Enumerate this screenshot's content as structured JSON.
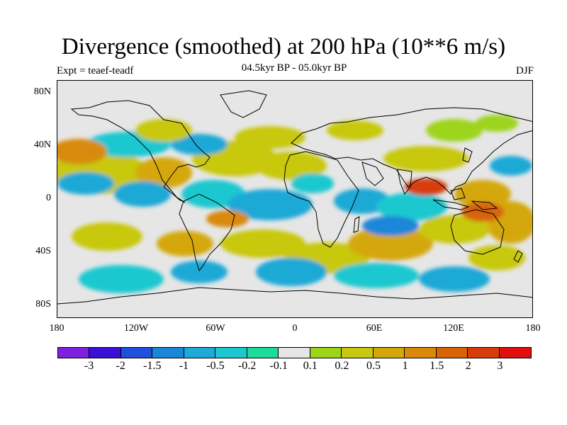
{
  "header": {
    "title": "Divergence (smoothed) at 200 hPa (10**6 m/s)",
    "experiment": "Expt = teaef-teadf",
    "period": "04.5kyr BP - 05.0kyr BP",
    "season": "DJF"
  },
  "axes": {
    "y_labels": [
      "80N",
      "40N",
      "0",
      "40S",
      "80S"
    ],
    "x_labels": [
      "180",
      "120W",
      "60W",
      "0",
      "60E",
      "120E",
      "180"
    ]
  },
  "colorbar": {
    "colors": [
      "#7f1fe0",
      "#3a10d8",
      "#1f4fdc",
      "#1a86d8",
      "#1fa9d6",
      "#1ec8d0",
      "#1ddc9a",
      "#e6e6e6",
      "#9dd41a",
      "#c8c80f",
      "#d4a80a",
      "#d88a08",
      "#d86408",
      "#d83c08",
      "#e00f0f"
    ],
    "labels": [
      "-3",
      "-2",
      "-1.5",
      "-1",
      "-0.5",
      "-0.2",
      "-0.1",
      "0.1",
      "0.2",
      "0.5",
      "1",
      "1.5",
      "2",
      "3"
    ]
  },
  "map_data": {
    "projection": "cylindrical equidistant",
    "lon_range": [
      -180,
      180
    ],
    "lat_range": [
      -90,
      90
    ],
    "field": "200 hPa divergence difference (smoothed)"
  }
}
